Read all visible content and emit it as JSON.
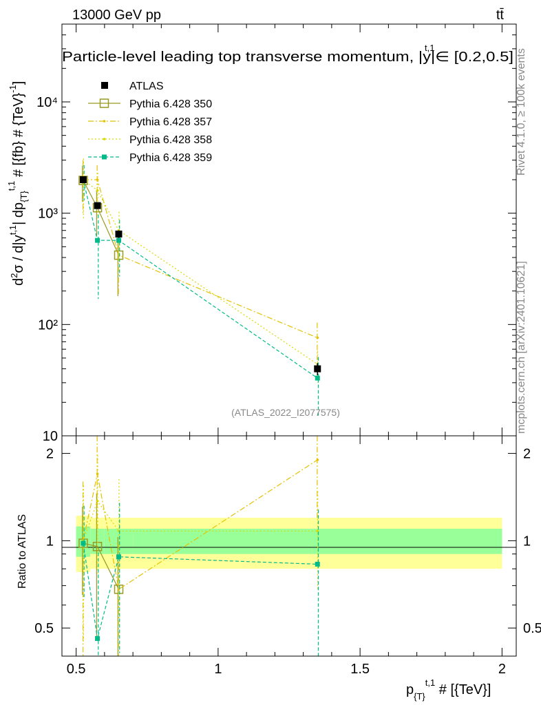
{
  "header": {
    "left": "13000 GeV pp",
    "right": "tt̄",
    "title": "Particle-level leading top transverse momentum, |y|∈ [0.2,0.5]",
    "title_sup": "t,1",
    "watermark": "(ATLAS_2022_I2077575)",
    "side_top": "Rivet 4.1.0, ≥ 100k events",
    "side_bottom": "mcplots.cern.ch [arXiv:2401.10621]"
  },
  "chart_data": {
    "type": "line",
    "title": "Particle-level leading top transverse momentum, |y|t,1∈ [0.2,0.5]",
    "xlabel": "p_{T}^{t,1} # [{TeV}]",
    "ylabel": "d²σ / d|y^{t,1}| dp_{T}^{t,1} # [{fb} # {TeV}^{-1}]",
    "ratio_ylabel": "Ratio to ATLAS",
    "xlim": [
      0.45,
      2.05
    ],
    "ylim": [
      10,
      50000
    ],
    "yscale": "log",
    "ratio_ylim": [
      0.4,
      2.3
    ],
    "x_ticks": [
      0.5,
      1,
      1.5,
      2
    ],
    "x_tick_labels": [
      "0.5",
      "1",
      "1.5",
      "2"
    ],
    "y_ticks": [
      10,
      100,
      1000,
      10000
    ],
    "y_tick_labels": [
      "10",
      "10²",
      "10³",
      "10⁴"
    ],
    "ratio_ticks": [
      0.5,
      1,
      2
    ],
    "ratio_tick_labels": [
      "0.5",
      "1",
      "2"
    ],
    "bin_edges": [
      0.5,
      0.55,
      0.6,
      0.7,
      2.0
    ],
    "data": {
      "name": "ATLAS",
      "x": [
        0.525,
        0.575,
        0.65,
        1.35
      ],
      "y": [
        2000,
        1170,
        650,
        40
      ],
      "err": [
        130,
        80,
        50,
        5
      ]
    },
    "band_inner": [
      0.12,
      0.1,
      0.1,
      0.1
    ],
    "band_outer": [
      0.22,
      0.2,
      0.2,
      0.2
    ],
    "series": [
      {
        "name": "Pythia 6.428 350",
        "color": "#999922",
        "dash": "",
        "marker": "open-square",
        "x": [
          0.525,
          0.575,
          0.65
        ],
        "y": [
          1970,
          1120,
          420
        ],
        "yerr": [
          700,
          500,
          240
        ],
        "ratio": [
          0.98,
          0.955,
          0.68
        ],
        "rerr": [
          0.33,
          0.5,
          0.35
        ]
      },
      {
        "name": "Pythia 6.428 357",
        "color": "#e5c100",
        "dash": "8,3,2,3",
        "marker": "dot",
        "x": [
          0.525,
          0.575,
          0.65,
          1.35
        ],
        "y": [
          2000,
          2000,
          420,
          76
        ],
        "yerr": [
          1000,
          700,
          240,
          28
        ],
        "ratio": [
          1.0,
          1.7,
          0.68,
          1.9
        ],
        "rerr": [
          0.6,
          0.6,
          0.3,
          0.7
        ]
      },
      {
        "name": "Pythia 6.428 358",
        "color": "#d9d900",
        "dash": "2,3",
        "marker": "dot",
        "x": [
          0.525,
          0.575,
          0.65,
          1.35
        ],
        "y": [
          2000,
          1600,
          700,
          44
        ],
        "yerr": [
          1100,
          700,
          330,
          14
        ],
        "ratio": [
          1.0,
          1.37,
          1.08,
          1.08
        ],
        "rerr": [
          0.55,
          0.6,
          0.55,
          0.4
        ]
      },
      {
        "name": "Pythia 6.428 359",
        "color": "#00bb88",
        "dash": "5,3",
        "marker": "filled-square",
        "x": [
          0.525,
          0.575,
          0.65,
          1.35
        ],
        "y": [
          2000,
          570,
          570,
          33
        ],
        "yerr": [
          700,
          400,
          300,
          18
        ],
        "ratio": [
          0.98,
          0.46,
          0.88,
          0.83
        ],
        "rerr": [
          0.34,
          0.45,
          0.47,
          0.45
        ]
      }
    ]
  }
}
